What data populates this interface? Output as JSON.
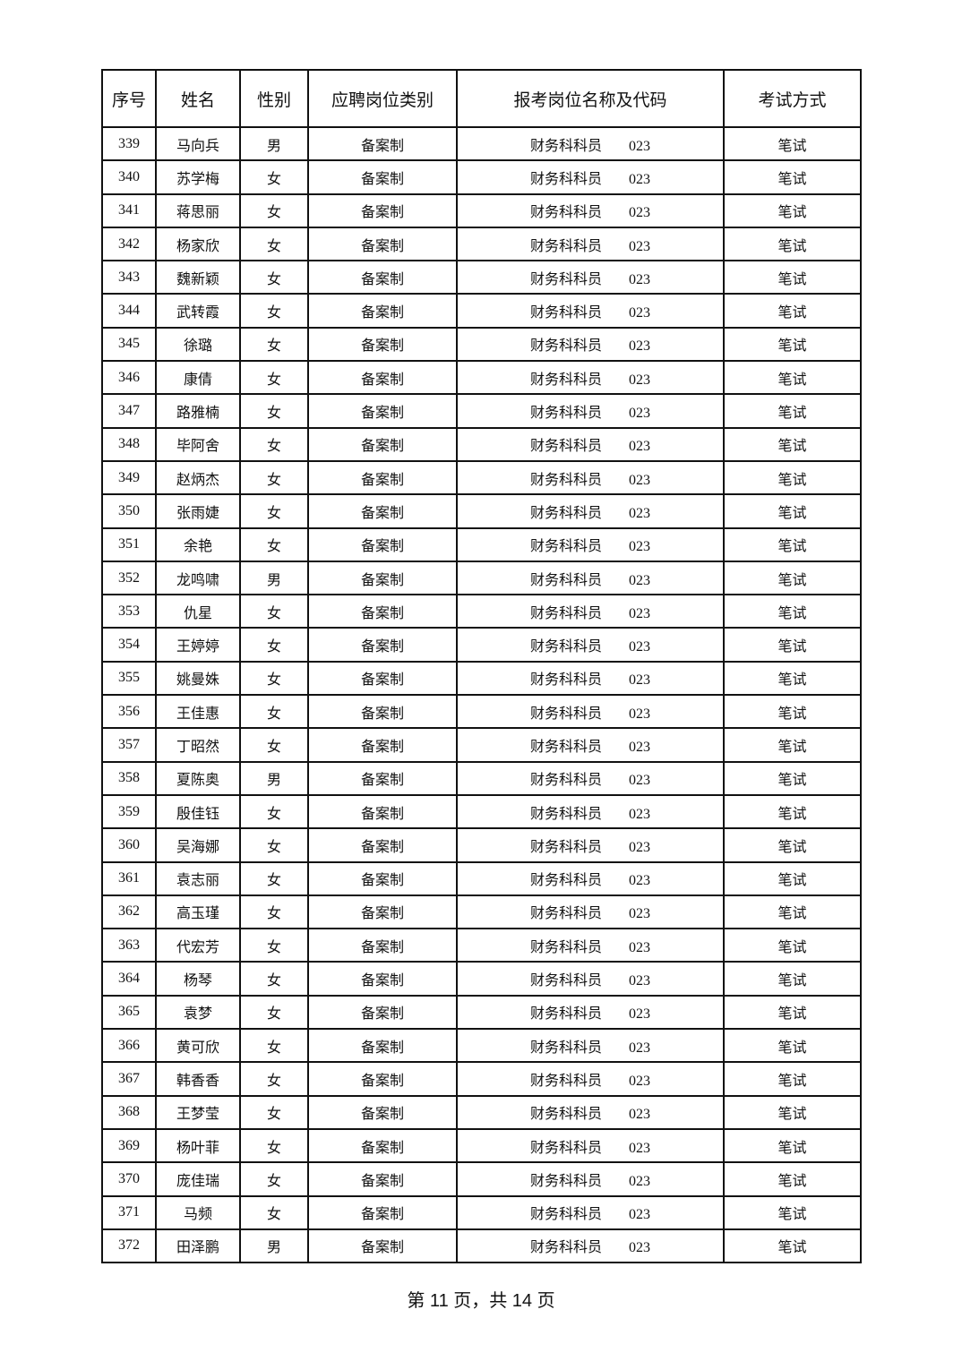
{
  "headers": [
    "序号",
    "姓名",
    "性别",
    "应聘岗位类别",
    "报考岗位名称及代码",
    "考试方式"
  ],
  "rows": [
    {
      "no": "339",
      "name": "马向兵",
      "gender": "男",
      "category": "备案制",
      "position": "财务科科员",
      "code": "023",
      "method": "笔试"
    },
    {
      "no": "340",
      "name": "苏学梅",
      "gender": "女",
      "category": "备案制",
      "position": "财务科科员",
      "code": "023",
      "method": "笔试"
    },
    {
      "no": "341",
      "name": "蒋思丽",
      "gender": "女",
      "category": "备案制",
      "position": "财务科科员",
      "code": "023",
      "method": "笔试"
    },
    {
      "no": "342",
      "name": "杨家欣",
      "gender": "女",
      "category": "备案制",
      "position": "财务科科员",
      "code": "023",
      "method": "笔试"
    },
    {
      "no": "343",
      "name": "魏新颖",
      "gender": "女",
      "category": "备案制",
      "position": "财务科科员",
      "code": "023",
      "method": "笔试"
    },
    {
      "no": "344",
      "name": "武转霞",
      "gender": "女",
      "category": "备案制",
      "position": "财务科科员",
      "code": "023",
      "method": "笔试"
    },
    {
      "no": "345",
      "name": "徐璐",
      "gender": "女",
      "category": "备案制",
      "position": "财务科科员",
      "code": "023",
      "method": "笔试"
    },
    {
      "no": "346",
      "name": "康倩",
      "gender": "女",
      "category": "备案制",
      "position": "财务科科员",
      "code": "023",
      "method": "笔试"
    },
    {
      "no": "347",
      "name": "路雅楠",
      "gender": "女",
      "category": "备案制",
      "position": "财务科科员",
      "code": "023",
      "method": "笔试"
    },
    {
      "no": "348",
      "name": "毕阿舍",
      "gender": "女",
      "category": "备案制",
      "position": "财务科科员",
      "code": "023",
      "method": "笔试"
    },
    {
      "no": "349",
      "name": "赵炳杰",
      "gender": "女",
      "category": "备案制",
      "position": "财务科科员",
      "code": "023",
      "method": "笔试"
    },
    {
      "no": "350",
      "name": "张雨婕",
      "gender": "女",
      "category": "备案制",
      "position": "财务科科员",
      "code": "023",
      "method": "笔试"
    },
    {
      "no": "351",
      "name": "余艳",
      "gender": "女",
      "category": "备案制",
      "position": "财务科科员",
      "code": "023",
      "method": "笔试"
    },
    {
      "no": "352",
      "name": "龙鸣啸",
      "gender": "男",
      "category": "备案制",
      "position": "财务科科员",
      "code": "023",
      "method": "笔试"
    },
    {
      "no": "353",
      "name": "仇星",
      "gender": "女",
      "category": "备案制",
      "position": "财务科科员",
      "code": "023",
      "method": "笔试"
    },
    {
      "no": "354",
      "name": "王婷婷",
      "gender": "女",
      "category": "备案制",
      "position": "财务科科员",
      "code": "023",
      "method": "笔试"
    },
    {
      "no": "355",
      "name": "姚曼姝",
      "gender": "女",
      "category": "备案制",
      "position": "财务科科员",
      "code": "023",
      "method": "笔试"
    },
    {
      "no": "356",
      "name": "王佳惠",
      "gender": "女",
      "category": "备案制",
      "position": "财务科科员",
      "code": "023",
      "method": "笔试"
    },
    {
      "no": "357",
      "name": "丁昭然",
      "gender": "女",
      "category": "备案制",
      "position": "财务科科员",
      "code": "023",
      "method": "笔试"
    },
    {
      "no": "358",
      "name": "夏陈奥",
      "gender": "男",
      "category": "备案制",
      "position": "财务科科员",
      "code": "023",
      "method": "笔试"
    },
    {
      "no": "359",
      "name": "殷佳钰",
      "gender": "女",
      "category": "备案制",
      "position": "财务科科员",
      "code": "023",
      "method": "笔试"
    },
    {
      "no": "360",
      "name": "吴海娜",
      "gender": "女",
      "category": "备案制",
      "position": "财务科科员",
      "code": "023",
      "method": "笔试"
    },
    {
      "no": "361",
      "name": "袁志丽",
      "gender": "女",
      "category": "备案制",
      "position": "财务科科员",
      "code": "023",
      "method": "笔试"
    },
    {
      "no": "362",
      "name": "高玉瑾",
      "gender": "女",
      "category": "备案制",
      "position": "财务科科员",
      "code": "023",
      "method": "笔试"
    },
    {
      "no": "363",
      "name": "代宏芳",
      "gender": "女",
      "category": "备案制",
      "position": "财务科科员",
      "code": "023",
      "method": "笔试"
    },
    {
      "no": "364",
      "name": "杨琴",
      "gender": "女",
      "category": "备案制",
      "position": "财务科科员",
      "code": "023",
      "method": "笔试"
    },
    {
      "no": "365",
      "name": "袁梦",
      "gender": "女",
      "category": "备案制",
      "position": "财务科科员",
      "code": "023",
      "method": "笔试"
    },
    {
      "no": "366",
      "name": "黄可欣",
      "gender": "女",
      "category": "备案制",
      "position": "财务科科员",
      "code": "023",
      "method": "笔试"
    },
    {
      "no": "367",
      "name": "韩香香",
      "gender": "女",
      "category": "备案制",
      "position": "财务科科员",
      "code": "023",
      "method": "笔试"
    },
    {
      "no": "368",
      "name": "王梦莹",
      "gender": "女",
      "category": "备案制",
      "position": "财务科科员",
      "code": "023",
      "method": "笔试"
    },
    {
      "no": "369",
      "name": "杨叶菲",
      "gender": "女",
      "category": "备案制",
      "position": "财务科科员",
      "code": "023",
      "method": "笔试"
    },
    {
      "no": "370",
      "name": "庞佳瑞",
      "gender": "女",
      "category": "备案制",
      "position": "财务科科员",
      "code": "023",
      "method": "笔试"
    },
    {
      "no": "371",
      "name": "马频",
      "gender": "女",
      "category": "备案制",
      "position": "财务科科员",
      "code": "023",
      "method": "笔试"
    },
    {
      "no": "372",
      "name": "田泽鹏",
      "gender": "男",
      "category": "备案制",
      "position": "财务科科员",
      "code": "023",
      "method": "笔试"
    }
  ],
  "footer": "第 11 页，共 14 页"
}
